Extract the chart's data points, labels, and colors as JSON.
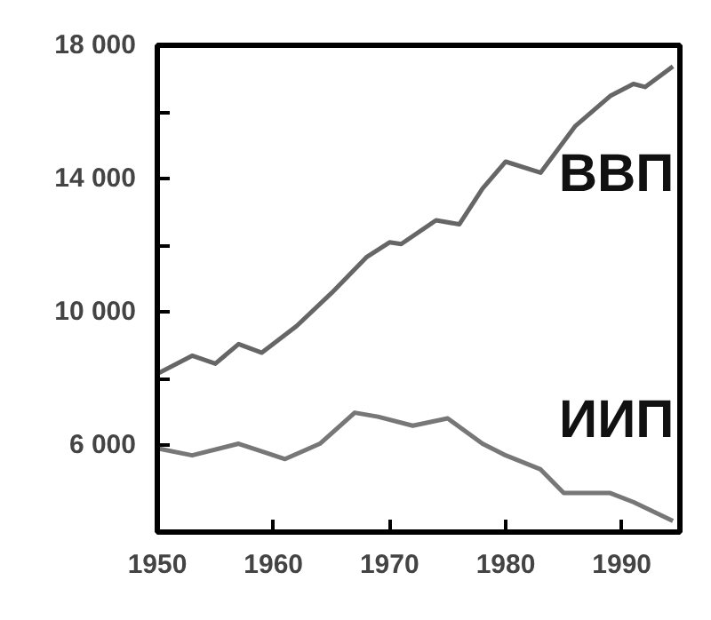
{
  "chart_data": {
    "type": "line",
    "xlim": [
      1950,
      1995
    ],
    "ylim": [
      3400,
      18000
    ],
    "xticks": [
      {
        "value": 1950,
        "label": "1950"
      },
      {
        "value": 1960,
        "label": "1960"
      },
      {
        "value": 1970,
        "label": "1970"
      },
      {
        "value": 1980,
        "label": "1980"
      },
      {
        "value": 1990,
        "label": "1990"
      }
    ],
    "yticks": [
      {
        "value": 6000,
        "label": "6 000"
      },
      {
        "value": 8000,
        "label": null
      },
      {
        "value": 10000,
        "label": "10 000"
      },
      {
        "value": 12000,
        "label": null
      },
      {
        "value": 14000,
        "label": "14 000"
      },
      {
        "value": 16000,
        "label": null
      },
      {
        "value": 18000,
        "label": "18 000"
      }
    ],
    "grid": false,
    "legend": false,
    "series": [
      {
        "name": "ВВП",
        "color": "#666666",
        "x": [
          1950,
          1953,
          1955,
          1957,
          1959,
          1962,
          1965,
          1968,
          1970,
          1971,
          1974,
          1976,
          1978,
          1980,
          1983,
          1986,
          1989,
          1991,
          1992,
          1994.4
        ],
        "values": [
          8150,
          8690,
          8450,
          9040,
          8780,
          9580,
          10570,
          11640,
          12090,
          12040,
          12750,
          12630,
          13700,
          14510,
          14180,
          15580,
          16480,
          16840,
          16750,
          17370
        ]
      },
      {
        "name": "ИИП",
        "color": "#777777",
        "x": [
          1950,
          1953,
          1957,
          1961,
          1964,
          1967,
          1969,
          1972,
          1975,
          1978,
          1980,
          1983,
          1985,
          1989,
          1991,
          1994.4
        ],
        "values": [
          5910,
          5700,
          6050,
          5590,
          6050,
          6980,
          6860,
          6590,
          6810,
          6050,
          5700,
          5280,
          4570,
          4570,
          4300,
          3730
        ]
      }
    ]
  }
}
